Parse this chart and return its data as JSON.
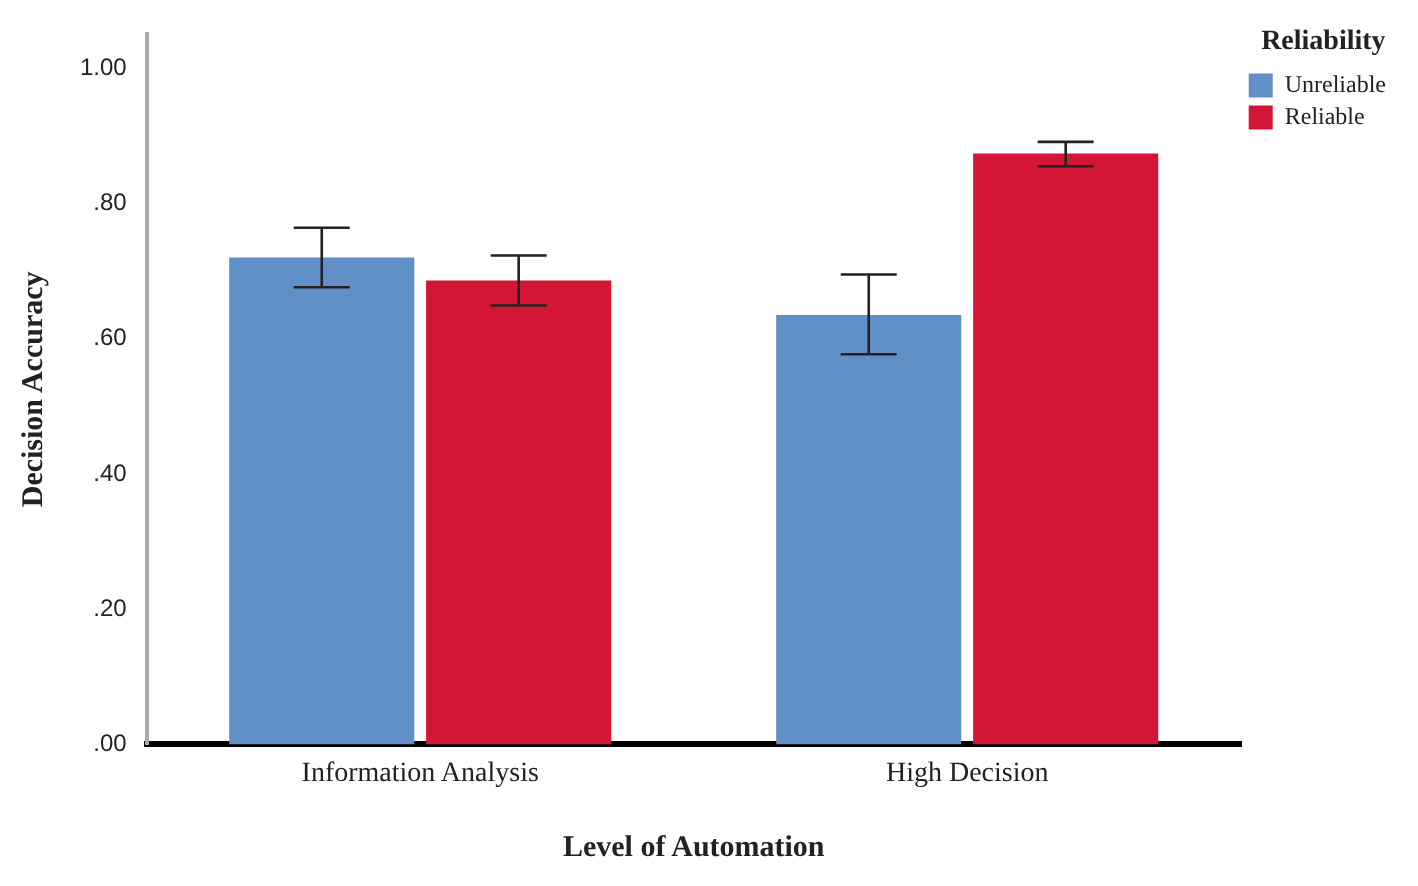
{
  "chart_data": {
    "type": "bar",
    "xlabel": "Level of Automation",
    "ylabel": "Decision Accuracy",
    "legend_title": "Reliability",
    "categories": [
      "Information Analysis",
      "High Decision"
    ],
    "series": [
      {
        "name": "Unreliable",
        "color": "#618fc7",
        "values": [
          0.72,
          0.635
        ],
        "errors": [
          [
            0.676,
            0.764
          ],
          [
            0.577,
            0.695
          ]
        ]
      },
      {
        "name": "Reliable",
        "color": "#d41636",
        "values": [
          0.686,
          0.874
        ],
        "errors": [
          [
            0.649,
            0.723
          ],
          [
            0.855,
            0.891
          ]
        ]
      }
    ],
    "ylim": [
      0,
      1.05
    ],
    "yticks": [
      {
        "value": 0,
        "label": ".00"
      },
      {
        "value": 0.2,
        "label": ".20"
      },
      {
        "value": 0.4,
        "label": ".40"
      },
      {
        "value": 0.6,
        "label": ".60"
      },
      {
        "value": 0.8,
        "label": ".80"
      },
      {
        "value": 1,
        "label": "1.00"
      }
    ],
    "grid": false,
    "legend": "top right"
  }
}
